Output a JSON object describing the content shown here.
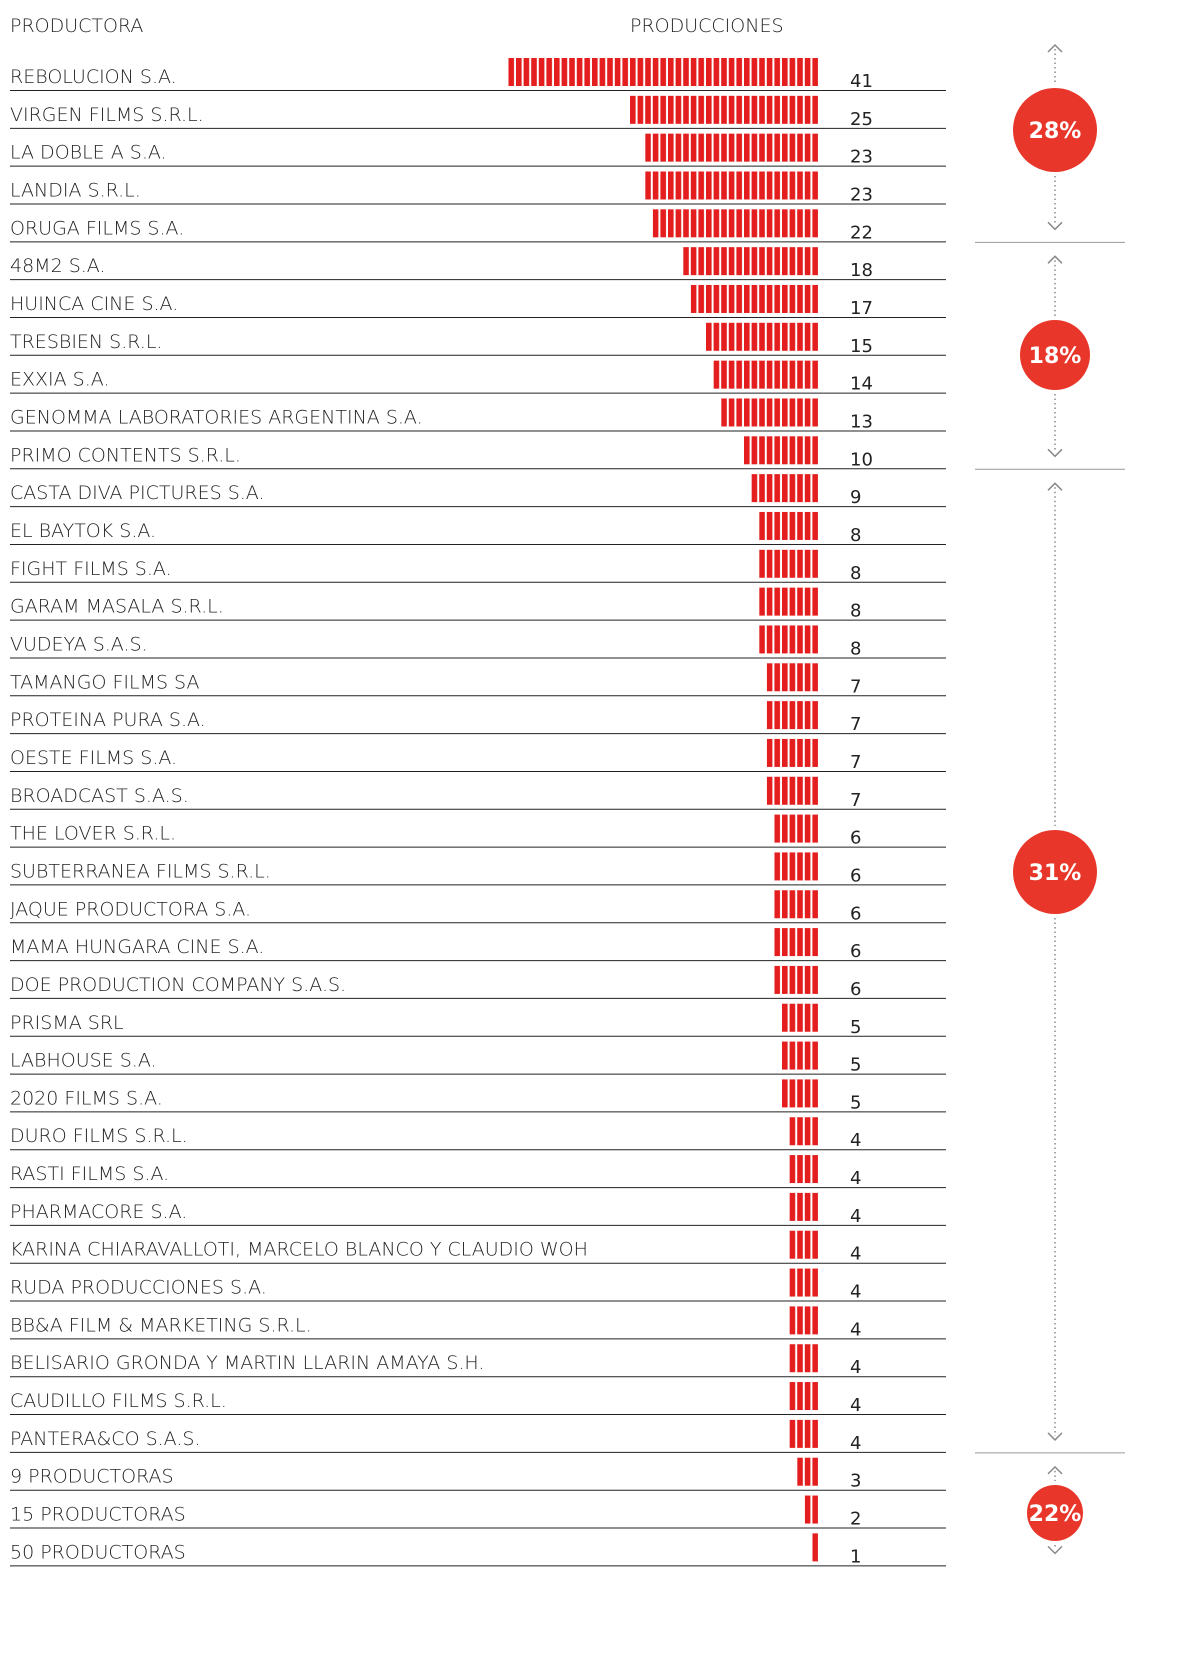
{
  "chart_data": {
    "type": "bar",
    "orientation": "horizontal",
    "ylabel": "PRODUCTORA",
    "xlabel": "PRODUCCIONES",
    "color": "#e41e1e",
    "categories": [
      "REBOLUCION S.A.",
      "VIRGEN FILMS S.R.L.",
      "LA DOBLE A S.A.",
      "LANDIA S.R.L.",
      "ORUGA FILMS S.A.",
      "48M2 S.A.",
      "HUINCA CINE S.A.",
      "TRESBIEN S.R.L.",
      "EXXIA S.A.",
      "GENOMMA LABORATORIES ARGENTINA S.A.",
      "PRIMO CONTENTS S.R.L.",
      "CASTA DIVA PICTURES S.A.",
      "EL BAYTOK S.A.",
      "FIGHT FILMS S.A.",
      "GARAM MASALA S.R.L.",
      "VUDEYA S.A.S.",
      "TAMANGO FILMS SA",
      "PROTEINA PURA S.A.",
      "OESTE FILMS S.A.",
      "BROADCAST S.A.S.",
      "THE LOVER S.R.L.",
      "SUBTERRANEA FILMS S.R.L.",
      "JAQUE PRODUCTORA S.A.",
      "MAMA HUNGARA CINE S.A.",
      "DOE PRODUCTION COMPANY S.A.S.",
      "PRISMA SRL",
      "LABHOUSE S.A.",
      "2020 FILMS S.A.",
      "DURO FILMS S.R.L.",
      "RASTI FILMS S.A.",
      "PHARMACORE S.A.",
      "KARINA CHIARAVALLOTI, MARCELO BLANCO Y CLAUDIO WOH",
      "RUDA PRODUCCIONES S.A.",
      "BB&A FILM & MARKETING S.R.L.",
      "BELISARIO GRONDA Y MARTIN LLARIN AMAYA S.H.",
      "CAUDILLO FILMS S.R.L.",
      "PANTERA&CO S.A.S.",
      "9 PRODUCTORAS",
      "15 PRODUCTORAS",
      "50 PRODUCTORAS"
    ],
    "values": [
      41,
      25,
      23,
      23,
      22,
      18,
      17,
      15,
      14,
      13,
      10,
      9,
      8,
      8,
      8,
      8,
      7,
      7,
      7,
      7,
      6,
      6,
      6,
      6,
      6,
      5,
      5,
      5,
      4,
      4,
      4,
      4,
      4,
      4,
      4,
      4,
      4,
      3,
      2,
      1
    ],
    "shares": [
      {
        "value": 28,
        "label": "28%"
      },
      {
        "value": 18,
        "label": "18%"
      },
      {
        "value": 31,
        "label": "31%"
      },
      {
        "value": 22,
        "label": "22%"
      }
    ],
    "share_color": "#e8372a"
  }
}
